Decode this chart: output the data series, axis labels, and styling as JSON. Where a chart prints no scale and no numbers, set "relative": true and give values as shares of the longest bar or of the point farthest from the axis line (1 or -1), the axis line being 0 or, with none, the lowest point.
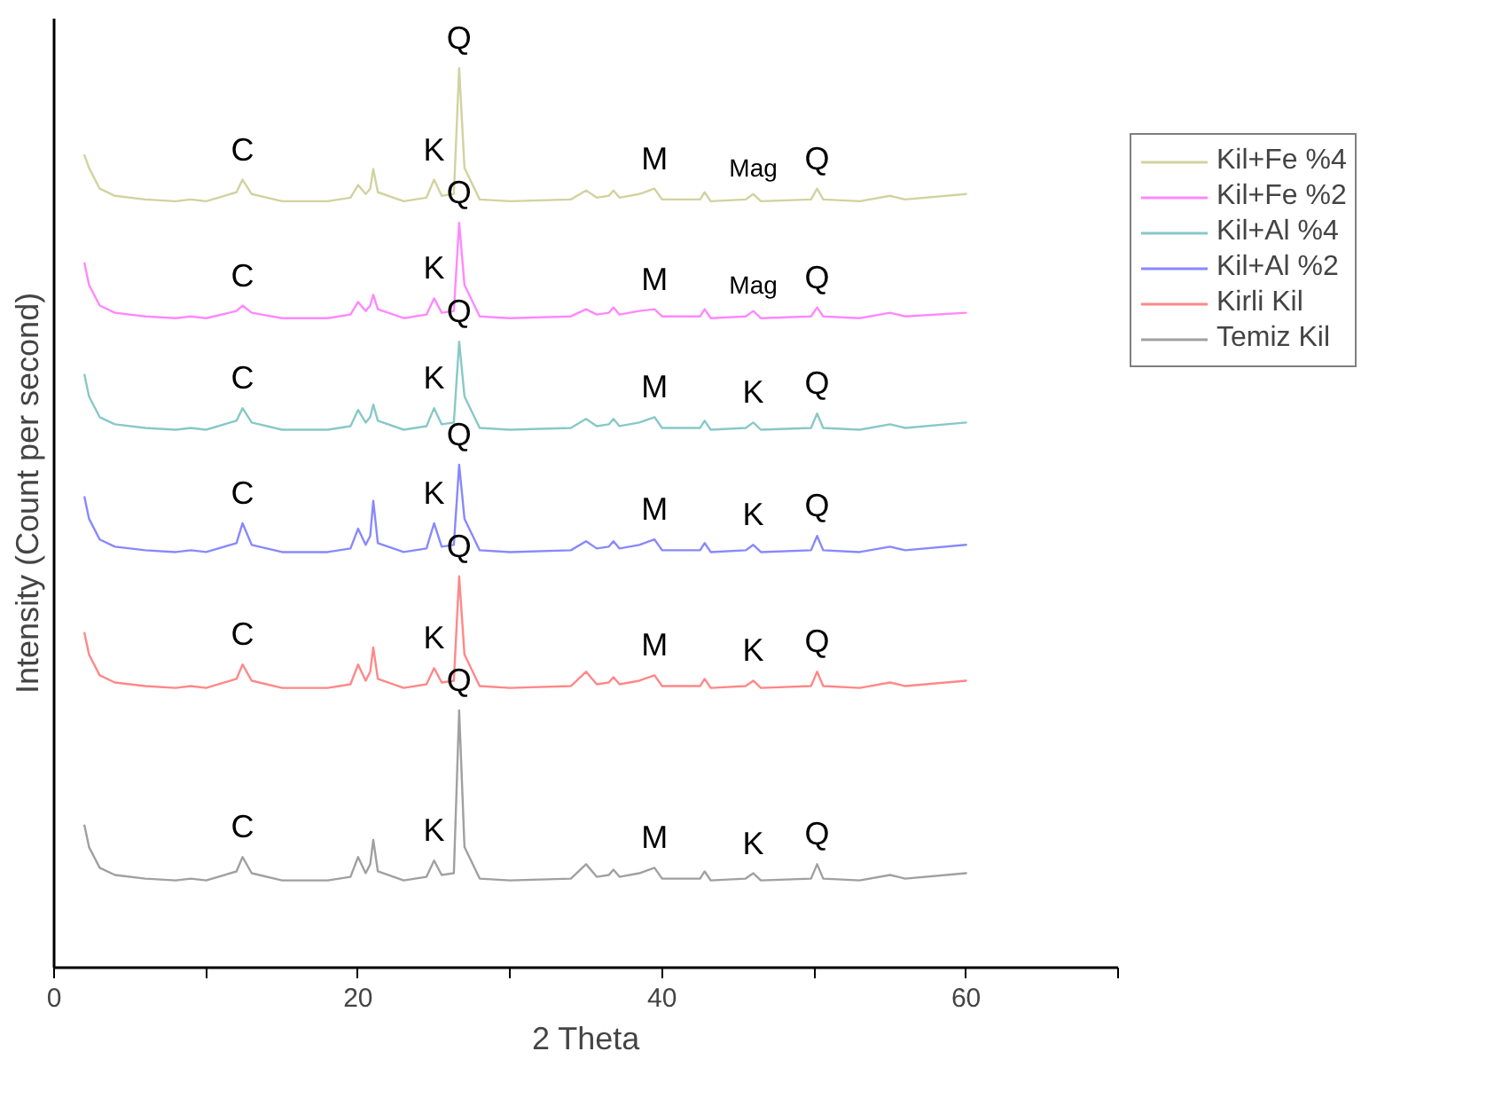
{
  "chart_data": {
    "type": "line",
    "relative": true,
    "xlabel": "2 Theta",
    "ylabel": "Intensity (Count per second)",
    "xlim": [
      0,
      70
    ],
    "xticks": [
      0,
      {
        "value": 10,
        "label": null
      },
      20,
      {
        "value": 30,
        "label": null
      },
      40,
      {
        "value": 50,
        "label": null
      },
      60,
      {
        "value": 70,
        "label": null
      }
    ],
    "grid": false,
    "legend": "right",
    "marker": "none",
    "line_style": "solid",
    "x": [
      2,
      2.3,
      3,
      4,
      6,
      8,
      9,
      10,
      12,
      12.4,
      13,
      15,
      18,
      19.5,
      20,
      20.5,
      20.8,
      21,
      21.3,
      23,
      24.5,
      25,
      25.5,
      26.3,
      26.65,
      27,
      28,
      30,
      34,
      35,
      35.7,
      36.5,
      36.8,
      37.2,
      38.5,
      39.5,
      40,
      42.5,
      42.8,
      43.2,
      45.5,
      46,
      46.5,
      49.8,
      50.2,
      50.6,
      53,
      55,
      56,
      60
    ],
    "series": [
      {
        "name": "Kil+Fe %4",
        "color": "#d2d2a0",
        "values": [
          0.903,
          0.889,
          0.866,
          0.858,
          0.854,
          0.852,
          0.854,
          0.852,
          0.862,
          0.876,
          0.86,
          0.852,
          0.852,
          0.856,
          0.87,
          0.86,
          0.866,
          0.888,
          0.862,
          0.852,
          0.856,
          0.876,
          0.858,
          0.86,
          1.0,
          0.889,
          0.854,
          0.852,
          0.854,
          0.864,
          0.856,
          0.858,
          0.864,
          0.856,
          0.86,
          0.866,
          0.854,
          0.854,
          0.862,
          0.852,
          0.854,
          0.86,
          0.852,
          0.854,
          0.866,
          0.854,
          0.852,
          0.858,
          0.854,
          0.86
        ]
      },
      {
        "name": "Kil+Fe %2",
        "color": "#ff88ff",
        "values": [
          0.783,
          0.759,
          0.736,
          0.728,
          0.724,
          0.722,
          0.724,
          0.722,
          0.73,
          0.736,
          0.728,
          0.722,
          0.722,
          0.726,
          0.74,
          0.73,
          0.736,
          0.748,
          0.732,
          0.722,
          0.726,
          0.744,
          0.728,
          0.73,
          0.828,
          0.759,
          0.724,
          0.722,
          0.724,
          0.732,
          0.726,
          0.728,
          0.734,
          0.726,
          0.73,
          0.732,
          0.724,
          0.724,
          0.732,
          0.722,
          0.724,
          0.73,
          0.722,
          0.724,
          0.734,
          0.724,
          0.722,
          0.728,
          0.724,
          0.728
        ]
      },
      {
        "name": "Kil+Al %4",
        "color": "#88c8c8",
        "values": [
          0.659,
          0.635,
          0.612,
          0.604,
          0.6,
          0.598,
          0.6,
          0.598,
          0.608,
          0.622,
          0.606,
          0.598,
          0.598,
          0.602,
          0.62,
          0.606,
          0.612,
          0.626,
          0.608,
          0.598,
          0.602,
          0.622,
          0.604,
          0.606,
          0.696,
          0.635,
          0.6,
          0.598,
          0.6,
          0.61,
          0.602,
          0.604,
          0.61,
          0.602,
          0.606,
          0.612,
          0.6,
          0.6,
          0.608,
          0.598,
          0.6,
          0.606,
          0.598,
          0.6,
          0.616,
          0.6,
          0.598,
          0.604,
          0.6,
          0.606
        ]
      },
      {
        "name": "Kil+Al %2",
        "color": "#8888ff",
        "values": [
          0.523,
          0.499,
          0.476,
          0.468,
          0.464,
          0.462,
          0.464,
          0.462,
          0.472,
          0.494,
          0.47,
          0.462,
          0.462,
          0.466,
          0.488,
          0.47,
          0.48,
          0.519,
          0.472,
          0.462,
          0.466,
          0.494,
          0.468,
          0.47,
          0.559,
          0.499,
          0.464,
          0.462,
          0.464,
          0.474,
          0.466,
          0.468,
          0.474,
          0.466,
          0.47,
          0.476,
          0.464,
          0.464,
          0.472,
          0.462,
          0.464,
          0.47,
          0.462,
          0.464,
          0.48,
          0.464,
          0.462,
          0.468,
          0.464,
          0.47
        ]
      },
      {
        "name": "Kirli Kil",
        "color": "#ff8888",
        "values": [
          0.372,
          0.348,
          0.325,
          0.317,
          0.313,
          0.311,
          0.313,
          0.311,
          0.321,
          0.337,
          0.319,
          0.311,
          0.311,
          0.315,
          0.337,
          0.319,
          0.329,
          0.356,
          0.321,
          0.311,
          0.315,
          0.333,
          0.317,
          0.319,
          0.435,
          0.348,
          0.313,
          0.311,
          0.313,
          0.329,
          0.315,
          0.317,
          0.323,
          0.315,
          0.319,
          0.325,
          0.313,
          0.313,
          0.321,
          0.311,
          0.313,
          0.319,
          0.311,
          0.313,
          0.329,
          0.313,
          0.311,
          0.317,
          0.313,
          0.319
        ]
      },
      {
        "name": "Temiz Kil",
        "color": "#a0a0a0",
        "values": [
          0.158,
          0.134,
          0.111,
          0.103,
          0.099,
          0.097,
          0.099,
          0.097,
          0.107,
          0.123,
          0.105,
          0.097,
          0.097,
          0.101,
          0.123,
          0.105,
          0.115,
          0.142,
          0.107,
          0.097,
          0.101,
          0.119,
          0.103,
          0.105,
          0.286,
          0.134,
          0.099,
          0.097,
          0.099,
          0.115,
          0.101,
          0.103,
          0.109,
          0.101,
          0.105,
          0.111,
          0.099,
          0.099,
          0.107,
          0.097,
          0.099,
          0.105,
          0.097,
          0.099,
          0.115,
          0.099,
          0.097,
          0.103,
          0.099,
          0.105
        ]
      }
    ],
    "annotations": [
      {
        "text": "C",
        "x": 12.4,
        "y": 0.876
      },
      {
        "text": "K",
        "x": 25,
        "y": 0.876
      },
      {
        "text": "Q",
        "x": 26.65,
        "y": 1.0
      },
      {
        "text": "M",
        "x": 39.5,
        "y": 0.866
      },
      {
        "text": "Mag",
        "x": 46,
        "y": 0.86
      },
      {
        "text": "Q",
        "x": 50.2,
        "y": 0.866
      },
      {
        "text": "C",
        "x": 12.4,
        "y": 0.736
      },
      {
        "text": "K",
        "x": 25,
        "y": 0.744
      },
      {
        "text": "Q",
        "x": 26.65,
        "y": 0.828
      },
      {
        "text": "M",
        "x": 39.5,
        "y": 0.732
      },
      {
        "text": "Mag",
        "x": 46,
        "y": 0.73
      },
      {
        "text": "Q",
        "x": 50.2,
        "y": 0.734
      },
      {
        "text": "C",
        "x": 12.4,
        "y": 0.622
      },
      {
        "text": "K",
        "x": 25,
        "y": 0.622
      },
      {
        "text": "Q",
        "x": 26.65,
        "y": 0.696
      },
      {
        "text": "M",
        "x": 39.5,
        "y": 0.612
      },
      {
        "text": "K",
        "x": 46,
        "y": 0.606
      },
      {
        "text": "Q",
        "x": 50.2,
        "y": 0.616
      },
      {
        "text": "C",
        "x": 12.4,
        "y": 0.494
      },
      {
        "text": "K",
        "x": 25,
        "y": 0.494
      },
      {
        "text": "Q",
        "x": 26.65,
        "y": 0.559
      },
      {
        "text": "M",
        "x": 39.5,
        "y": 0.476
      },
      {
        "text": "K",
        "x": 46,
        "y": 0.47
      },
      {
        "text": "Q",
        "x": 50.2,
        "y": 0.48
      },
      {
        "text": "C",
        "x": 12.4,
        "y": 0.337
      },
      {
        "text": "K",
        "x": 25,
        "y": 0.333
      },
      {
        "text": "Q",
        "x": 26.65,
        "y": 0.435
      },
      {
        "text": "M",
        "x": 39.5,
        "y": 0.325
      },
      {
        "text": "K",
        "x": 46,
        "y": 0.319
      },
      {
        "text": "Q",
        "x": 50.2,
        "y": 0.329
      },
      {
        "text": "C",
        "x": 12.4,
        "y": 0.123
      },
      {
        "text": "K",
        "x": 25,
        "y": 0.119
      },
      {
        "text": "Q",
        "x": 26.65,
        "y": 0.286
      },
      {
        "text": "M",
        "x": 39.5,
        "y": 0.111
      },
      {
        "text": "K",
        "x": 46,
        "y": 0.105
      },
      {
        "text": "Q",
        "x": 50.2,
        "y": 0.115
      }
    ]
  }
}
